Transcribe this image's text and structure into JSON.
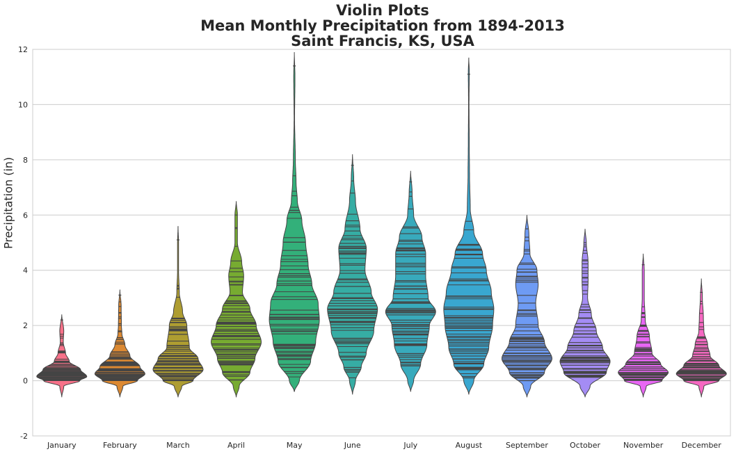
{
  "chart_data": {
    "type": "violin",
    "title": [
      "Violin Plots",
      "Mean Monthly Precipitation from 1894-2013",
      "Saint Francis, KS, USA"
    ],
    "ylabel": "Precipitation (in)",
    "ylim": [
      -2,
      12
    ],
    "yticks": [
      -2,
      0,
      2,
      4,
      6,
      8,
      10,
      12
    ],
    "grid": true,
    "inner": "stick",
    "categories": [
      "January",
      "February",
      "March",
      "April",
      "May",
      "June",
      "July",
      "August",
      "September",
      "October",
      "November",
      "December"
    ],
    "series": [
      {
        "category": "January",
        "color": "#f77189",
        "min": 0.0,
        "max": 2.2,
        "median": 0.3,
        "profile": [
          [
            -0.6,
            0
          ],
          [
            -0.2,
            0.08
          ],
          [
            0,
            0.72
          ],
          [
            0.15,
            1.0
          ],
          [
            0.4,
            0.75
          ],
          [
            0.7,
            0.3
          ],
          [
            1.0,
            0.15
          ],
          [
            1.4,
            0.06
          ],
          [
            1.8,
            0.08
          ],
          [
            2.4,
            0
          ]
        ]
      },
      {
        "category": "February",
        "color": "#dc8932",
        "min": 0.0,
        "max": 3.1,
        "median": 0.4,
        "profile": [
          [
            -0.6,
            0
          ],
          [
            -0.2,
            0.12
          ],
          [
            0,
            0.7
          ],
          [
            0.25,
            1.0
          ],
          [
            0.5,
            0.8
          ],
          [
            0.9,
            0.4
          ],
          [
            1.3,
            0.2
          ],
          [
            1.7,
            0.08
          ],
          [
            2.0,
            0.06
          ],
          [
            2.7,
            0.05
          ],
          [
            3.3,
            0
          ]
        ]
      },
      {
        "category": "March",
        "color": "#ae9d31",
        "min": 0.0,
        "max": 5.1,
        "median": 0.7,
        "profile": [
          [
            -0.6,
            0
          ],
          [
            -0.2,
            0.15
          ],
          [
            0,
            0.6
          ],
          [
            0.4,
            1.0
          ],
          [
            0.8,
            0.8
          ],
          [
            1.2,
            0.45
          ],
          [
            2.0,
            0.35
          ],
          [
            2.5,
            0.18
          ],
          [
            3.2,
            0.05
          ],
          [
            4.0,
            0.02
          ],
          [
            5.0,
            0.02
          ],
          [
            5.6,
            0
          ]
        ]
      },
      {
        "category": "April",
        "color": "#77ab31",
        "min": 0.0,
        "max": 6.0,
        "median": 1.5,
        "profile": [
          [
            -0.6,
            0
          ],
          [
            -0.2,
            0.12
          ],
          [
            0.3,
            0.55
          ],
          [
            0.8,
            0.75
          ],
          [
            1.4,
            1.0
          ],
          [
            2.0,
            0.8
          ],
          [
            2.6,
            0.55
          ],
          [
            3.2,
            0.25
          ],
          [
            3.8,
            0.3
          ],
          [
            4.3,
            0.22
          ],
          [
            5.0,
            0.05
          ],
          [
            6.0,
            0.05
          ],
          [
            6.5,
            0
          ]
        ]
      },
      {
        "category": "May",
        "color": "#33b07a",
        "min": 0.1,
        "max": 11.4,
        "median": 2.3,
        "profile": [
          [
            -0.4,
            0
          ],
          [
            0,
            0.2
          ],
          [
            0.7,
            0.65
          ],
          [
            1.4,
            0.85
          ],
          [
            2.2,
            1.0
          ],
          [
            2.8,
            0.95
          ],
          [
            3.5,
            0.7
          ],
          [
            4.2,
            0.55
          ],
          [
            5.0,
            0.45
          ],
          [
            5.8,
            0.3
          ],
          [
            6.5,
            0.12
          ],
          [
            7.2,
            0.07
          ],
          [
            8.0,
            0.04
          ],
          [
            9.5,
            0.01
          ],
          [
            11.0,
            0.025
          ],
          [
            11.9,
            0
          ]
        ]
      },
      {
        "category": "June",
        "color": "#36ada4",
        "min": 0.1,
        "max": 7.8,
        "median": 2.5,
        "profile": [
          [
            -0.5,
            0
          ],
          [
            0,
            0.12
          ],
          [
            0.5,
            0.35
          ],
          [
            1.0,
            0.55
          ],
          [
            1.8,
            0.85
          ],
          [
            2.6,
            1.0
          ],
          [
            3.2,
            0.75
          ],
          [
            4.0,
            0.5
          ],
          [
            4.8,
            0.55
          ],
          [
            5.5,
            0.3
          ],
          [
            6.5,
            0.12
          ],
          [
            7.3,
            0.05
          ],
          [
            8.2,
            0
          ]
        ]
      },
      {
        "category": "July",
        "color": "#38aabc",
        "min": 0.2,
        "max": 7.2,
        "median": 2.5,
        "profile": [
          [
            -0.4,
            0
          ],
          [
            0,
            0.12
          ],
          [
            0.6,
            0.4
          ],
          [
            1.3,
            0.65
          ],
          [
            2.0,
            0.75
          ],
          [
            2.5,
            1.0
          ],
          [
            3.0,
            0.7
          ],
          [
            3.8,
            0.6
          ],
          [
            4.6,
            0.6
          ],
          [
            5.2,
            0.45
          ],
          [
            6.0,
            0.12
          ],
          [
            6.8,
            0.06
          ],
          [
            7.6,
            0
          ]
        ]
      },
      {
        "category": "August",
        "color": "#39a7d0",
        "min": 0.1,
        "max": 11.1,
        "median": 1.9,
        "profile": [
          [
            -0.5,
            0
          ],
          [
            0,
            0.2
          ],
          [
            0.6,
            0.6
          ],
          [
            1.2,
            0.8
          ],
          [
            2.0,
            0.95
          ],
          [
            2.6,
            1.0
          ],
          [
            3.2,
            0.9
          ],
          [
            4.0,
            0.7
          ],
          [
            4.6,
            0.55
          ],
          [
            5.4,
            0.2
          ],
          [
            6.2,
            0.06
          ],
          [
            7.5,
            0.03
          ],
          [
            8.5,
            0.02
          ],
          [
            10.0,
            0.01
          ],
          [
            11.2,
            0.02
          ],
          [
            11.7,
            0
          ]
        ]
      },
      {
        "category": "September",
        "color": "#6e9bf4",
        "min": 0.0,
        "max": 5.5,
        "median": 1.0,
        "profile": [
          [
            -0.6,
            0
          ],
          [
            -0.2,
            0.15
          ],
          [
            0.3,
            0.7
          ],
          [
            0.8,
            1.0
          ],
          [
            1.4,
            0.7
          ],
          [
            2.0,
            0.45
          ],
          [
            2.8,
            0.35
          ],
          [
            3.5,
            0.45
          ],
          [
            4.0,
            0.4
          ],
          [
            4.6,
            0.12
          ],
          [
            5.3,
            0.08
          ],
          [
            6.0,
            0
          ]
        ]
      },
      {
        "category": "October",
        "color": "#a48cf4",
        "min": 0.0,
        "max": 5.0,
        "median": 0.8,
        "profile": [
          [
            -0.6,
            0
          ],
          [
            -0.2,
            0.2
          ],
          [
            0.3,
            0.85
          ],
          [
            0.7,
            1.0
          ],
          [
            1.2,
            0.7
          ],
          [
            1.8,
            0.45
          ],
          [
            2.4,
            0.25
          ],
          [
            3.0,
            0.1
          ],
          [
            3.6,
            0.12
          ],
          [
            4.3,
            0.12
          ],
          [
            5.0,
            0.05
          ],
          [
            5.5,
            0
          ]
        ]
      },
      {
        "category": "November",
        "color": "#e866f4",
        "min": 0.0,
        "max": 4.2,
        "median": 0.3,
        "profile": [
          [
            -0.6,
            0
          ],
          [
            -0.2,
            0.12
          ],
          [
            0,
            0.75
          ],
          [
            0.3,
            1.0
          ],
          [
            0.6,
            0.7
          ],
          [
            1.0,
            0.35
          ],
          [
            1.6,
            0.25
          ],
          [
            2.2,
            0.08
          ],
          [
            3.0,
            0.04
          ],
          [
            4.0,
            0.04
          ],
          [
            4.6,
            0
          ]
        ]
      },
      {
        "category": "December",
        "color": "#f668c2",
        "min": 0.0,
        "max": 3.2,
        "median": 0.3,
        "profile": [
          [
            -0.6,
            0
          ],
          [
            -0.2,
            0.1
          ],
          [
            0,
            0.7
          ],
          [
            0.25,
            1.0
          ],
          [
            0.55,
            0.7
          ],
          [
            0.9,
            0.35
          ],
          [
            1.3,
            0.25
          ],
          [
            1.8,
            0.1
          ],
          [
            2.3,
            0.08
          ],
          [
            3.0,
            0.04
          ],
          [
            3.7,
            0
          ]
        ]
      }
    ]
  }
}
